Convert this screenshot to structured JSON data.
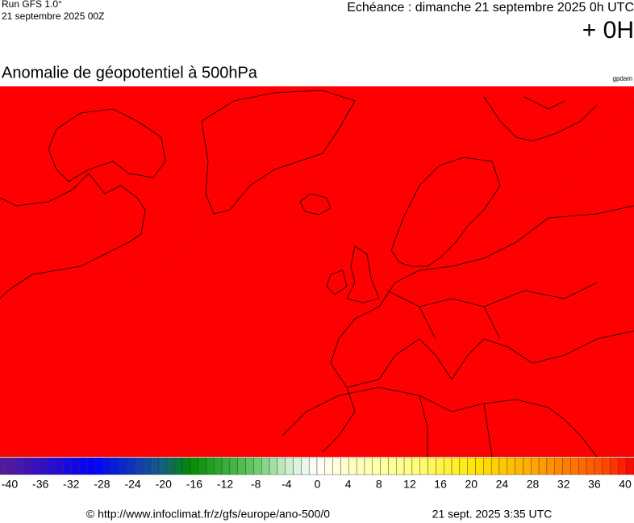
{
  "header": {
    "run": "Run GFS 1.0°",
    "run_date": "21 septembre 2025 00Z",
    "valid": "Echéance : dimanche 21 septembre 2025 0h UTC",
    "lead": "+ 0H"
  },
  "map": {
    "title": "Anomalie de géopotentiel à 500hPa",
    "unit": "gpdam"
  },
  "colorbar": {
    "range": [
      -40,
      40
    ],
    "ticks": [
      -40,
      -36,
      -32,
      -28,
      -24,
      -20,
      -16,
      -12,
      -8,
      -4,
      0,
      4,
      8,
      12,
      16,
      20,
      24,
      28,
      32,
      36,
      40
    ]
  },
  "footer": {
    "source": "© http://www.infoclimat.fr/z/gfs/europe/ano-500/0",
    "generated": "21 sept. 2025  3:35 UTC"
  }
}
